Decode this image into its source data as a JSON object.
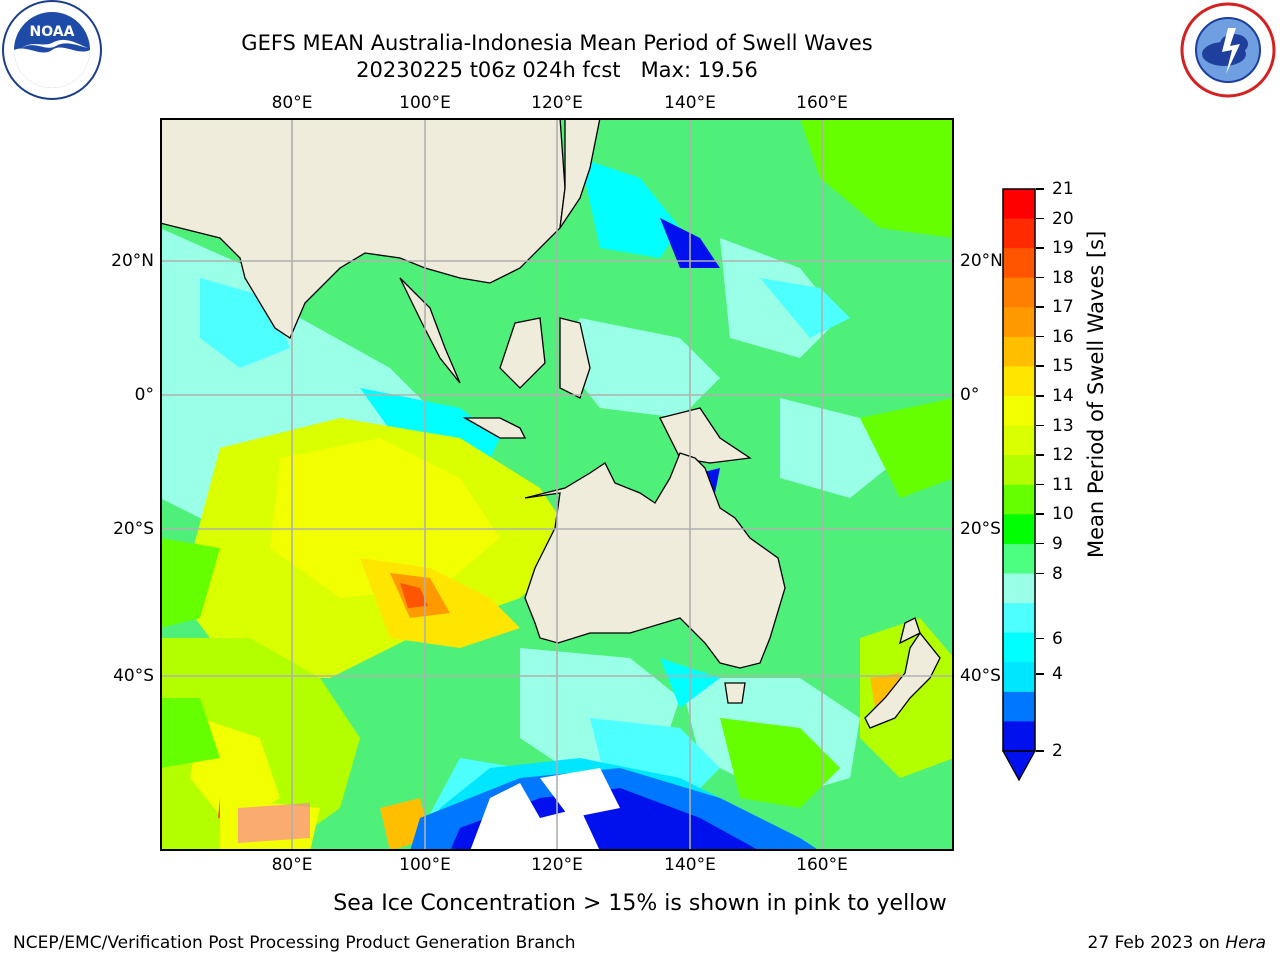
{
  "header": {
    "title_line1": "GEFS MEAN Australia-Indonesia Mean Period of Swell Waves",
    "title_line2": "20230225 t06z 024h fcst   Max: 19.56"
  },
  "logos": {
    "left": {
      "name": "NOAA",
      "ring_text": "NATIONAL OCEANIC AND ATMOSPHERIC ADMINISTRATION · U.S. DEPARTMENT OF COMMERCE"
    },
    "right": {
      "name": "NATIONAL WEATHER SERVICE"
    }
  },
  "map": {
    "lon_labels": [
      "80°E",
      "100°E",
      "120°E",
      "140°E",
      "160°E"
    ],
    "lat_labels": [
      "20°N",
      "0°",
      "20°S",
      "40°S"
    ],
    "ocean_base_color": "#4ff07a",
    "land_color": "#efecdc",
    "grid_color": "#b0b0b0"
  },
  "colorbar": {
    "label": "Mean Period of Swell Waves [s]",
    "ticks": [
      "21",
      "20",
      "19",
      "18",
      "17",
      "16",
      "15",
      "14",
      "13",
      "12",
      "11",
      "10",
      "9",
      "8",
      "6",
      "4",
      "2"
    ],
    "colors": [
      "#ff0000",
      "#ff2a00",
      "#ff5500",
      "#ff7f00",
      "#ff9900",
      "#ffbf00",
      "#ffe600",
      "#f2ff00",
      "#d9ff00",
      "#b3ff00",
      "#66ff00",
      "#00ff00",
      "#4dff80",
      "#99ffe6",
      "#4dffff",
      "#00ffff",
      "#00e6ff",
      "#0077ff",
      "#0011ee"
    ]
  },
  "notes": {
    "sea_ice": "Sea Ice Concentration > 15% is shown in pink to yellow"
  },
  "footer": {
    "left": "NCEP/EMC/Verification Post Processing Product Generation Branch",
    "right_prefix": "27 Feb 2023 on ",
    "right_machine": "Hera"
  }
}
